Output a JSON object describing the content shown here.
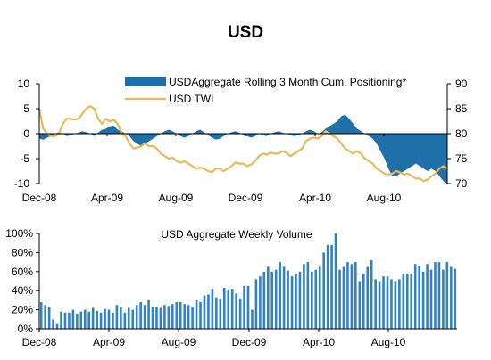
{
  "title": "USD",
  "colors": {
    "area": "#1f6fa8",
    "line": "#e9b958",
    "bar": "#2f82c4",
    "axis": "#000000"
  },
  "chart_data": [
    {
      "type": "area",
      "title": "",
      "xlabel": "",
      "x_tick_labels": [
        "Dec-08",
        "Apr-09",
        "Aug-09",
        "Dec-09",
        "Apr-10",
        "Aug-10"
      ],
      "y_left": {
        "ticks": [
          10,
          5,
          0,
          -5,
          -10
        ],
        "lim": [
          -10,
          10
        ]
      },
      "y_right": {
        "ticks": [
          90,
          85,
          80,
          75,
          70
        ],
        "lim": [
          70,
          90
        ]
      },
      "legend_position": "top-right",
      "series": [
        {
          "name": "USDAggregate Rolling 3 Month Cum. Positioning*",
          "kind": "area",
          "axis": "left",
          "x": [
            0,
            1,
            2,
            3,
            4,
            5,
            6,
            7,
            8,
            9,
            10,
            11,
            12,
            13,
            14,
            15,
            16,
            17,
            18,
            19,
            20,
            21,
            22,
            23,
            24,
            25,
            26,
            27,
            28,
            29,
            30,
            31,
            32,
            33,
            34,
            35,
            36,
            37,
            38,
            39,
            40,
            41,
            42,
            43,
            44,
            45,
            46,
            47,
            48,
            49,
            50,
            51,
            52,
            53,
            54,
            55,
            56,
            57,
            58,
            59,
            60,
            61,
            62,
            63,
            64,
            65,
            66,
            67,
            68,
            69,
            70,
            71,
            72,
            73,
            74,
            75,
            76,
            77,
            78,
            79,
            80,
            81,
            82,
            83,
            84,
            85,
            86,
            87,
            88,
            89,
            90,
            91,
            92,
            93,
            94,
            95,
            96,
            97,
            98,
            99,
            100,
            101,
            102,
            103,
            104
          ],
          "values": [
            -1,
            -1.2,
            -0.8,
            -0.5,
            0,
            0.3,
            0,
            -0.5,
            -0.3,
            0,
            0.2,
            0.5,
            0.3,
            0,
            -0.5,
            0.2,
            0.8,
            1,
            1.5,
            1.6,
            0.8,
            0.5,
            0,
            -0.5,
            -1.5,
            -2,
            -2.5,
            -2,
            -1.5,
            -1,
            -0.5,
            0,
            0.5,
            0.8,
            0.5,
            0,
            -0.5,
            -0.8,
            -0.5,
            0,
            0.5,
            0.8,
            0.3,
            -0.3,
            -0.8,
            -1.2,
            -1,
            -0.5,
            0,
            0.3,
            0.5,
            0.2,
            -0.3,
            -0.5,
            -0.8,
            -0.5,
            0,
            -0.3,
            -0.5,
            0,
            0.3,
            0.5,
            0.2,
            0,
            -0.3,
            -0.5,
            -0.3,
            0,
            0.5,
            0.8,
            0.5,
            0,
            0.3,
            1,
            1.5,
            2,
            2.5,
            3.5,
            3.8,
            3,
            2,
            1,
            0.5,
            0,
            -0.5,
            -1,
            -2,
            -3.5,
            -5,
            -7,
            -8.5,
            -8.5,
            -8,
            -7.5,
            -7,
            -6.5,
            -6,
            -6.5,
            -7,
            -7.5,
            -7,
            -7.5,
            -8.5,
            -9.5,
            -10
          ]
        },
        {
          "name": "USD TWI",
          "kind": "line",
          "axis": "right",
          "x": [
            0,
            1,
            2,
            3,
            4,
            5,
            6,
            7,
            8,
            9,
            10,
            11,
            12,
            13,
            14,
            15,
            16,
            17,
            18,
            19,
            20,
            21,
            22,
            23,
            24,
            25,
            26,
            27,
            28,
            29,
            30,
            31,
            32,
            33,
            34,
            35,
            36,
            37,
            38,
            39,
            40,
            41,
            42,
            43,
            44,
            45,
            46,
            47,
            48,
            49,
            50,
            51,
            52,
            53,
            54,
            55,
            56,
            57,
            58,
            59,
            60,
            61,
            62,
            63,
            64,
            65,
            66,
            67,
            68,
            69,
            70,
            71,
            72,
            73,
            74,
            75,
            76,
            77,
            78,
            79,
            80,
            81,
            82,
            83,
            84,
            85,
            86,
            87,
            88,
            89,
            90,
            91,
            92,
            93,
            94,
            95,
            96,
            97,
            98,
            99,
            100,
            101,
            102,
            103,
            104
          ],
          "values": [
            85,
            81,
            80,
            79.5,
            79.5,
            80,
            82,
            83,
            83,
            82.8,
            83,
            84,
            85,
            85.5,
            85,
            83,
            82,
            83,
            82.5,
            82.8,
            82,
            80,
            79.5,
            78,
            77,
            77.2,
            77.5,
            78,
            77.5,
            77.5,
            77,
            76,
            75.5,
            75,
            75.2,
            74.5,
            74.2,
            74.5,
            74,
            73.5,
            73,
            73.2,
            73,
            72.5,
            72.3,
            73,
            73,
            72.5,
            73,
            73.5,
            74.2,
            74,
            74,
            73.5,
            73.8,
            74.5,
            75.5,
            76,
            75.8,
            76.2,
            76,
            76,
            76.5,
            76.2,
            75.5,
            76,
            76.5,
            77,
            78.5,
            79,
            79.2,
            79,
            79.5,
            80.5,
            80,
            79.5,
            79,
            78,
            77,
            76.5,
            76,
            76.5,
            76,
            75,
            74.5,
            74,
            73,
            72.5,
            72,
            71.8,
            72,
            72.5,
            72.2,
            71.8,
            72,
            71.5,
            71,
            71,
            70.5,
            70.8,
            71.5,
            72,
            73,
            73.5,
            73
          ]
        }
      ]
    },
    {
      "type": "bar",
      "title": "USD Aggregate Weekly Volume",
      "xlabel": "",
      "ylabel": "",
      "x_tick_labels": [
        "Dec-08",
        "Apr-09",
        "Aug-09",
        "Dec-09",
        "Apr-10",
        "Aug-10"
      ],
      "y_tick_labels": [
        "100%",
        "80%",
        "60%",
        "40%",
        "20%",
        "0%"
      ],
      "ylim": [
        0,
        100
      ],
      "series": [
        {
          "name": "",
          "values": [
            28,
            25,
            23,
            10,
            5,
            18,
            17,
            17,
            20,
            16,
            18,
            20,
            18,
            22,
            19,
            17,
            21,
            20,
            17,
            25,
            23,
            17,
            22,
            20,
            25,
            28,
            25,
            30,
            23,
            23,
            22,
            25,
            24,
            26,
            28,
            28,
            26,
            25,
            23,
            30,
            28,
            35,
            36,
            42,
            33,
            31,
            43,
            40,
            42,
            37,
            32,
            45,
            45,
            20,
            52,
            55,
            60,
            65,
            60,
            62,
            70,
            65,
            61,
            55,
            57,
            60,
            68,
            70,
            60,
            62,
            65,
            80,
            88,
            88,
            100,
            62,
            65,
            70,
            68,
            70,
            50,
            58,
            65,
            72,
            52,
            50,
            55,
            55,
            52,
            50,
            52,
            58,
            58,
            58,
            68,
            66,
            60,
            68,
            62,
            70,
            70,
            62,
            70,
            65,
            63
          ]
        }
      ]
    }
  ]
}
